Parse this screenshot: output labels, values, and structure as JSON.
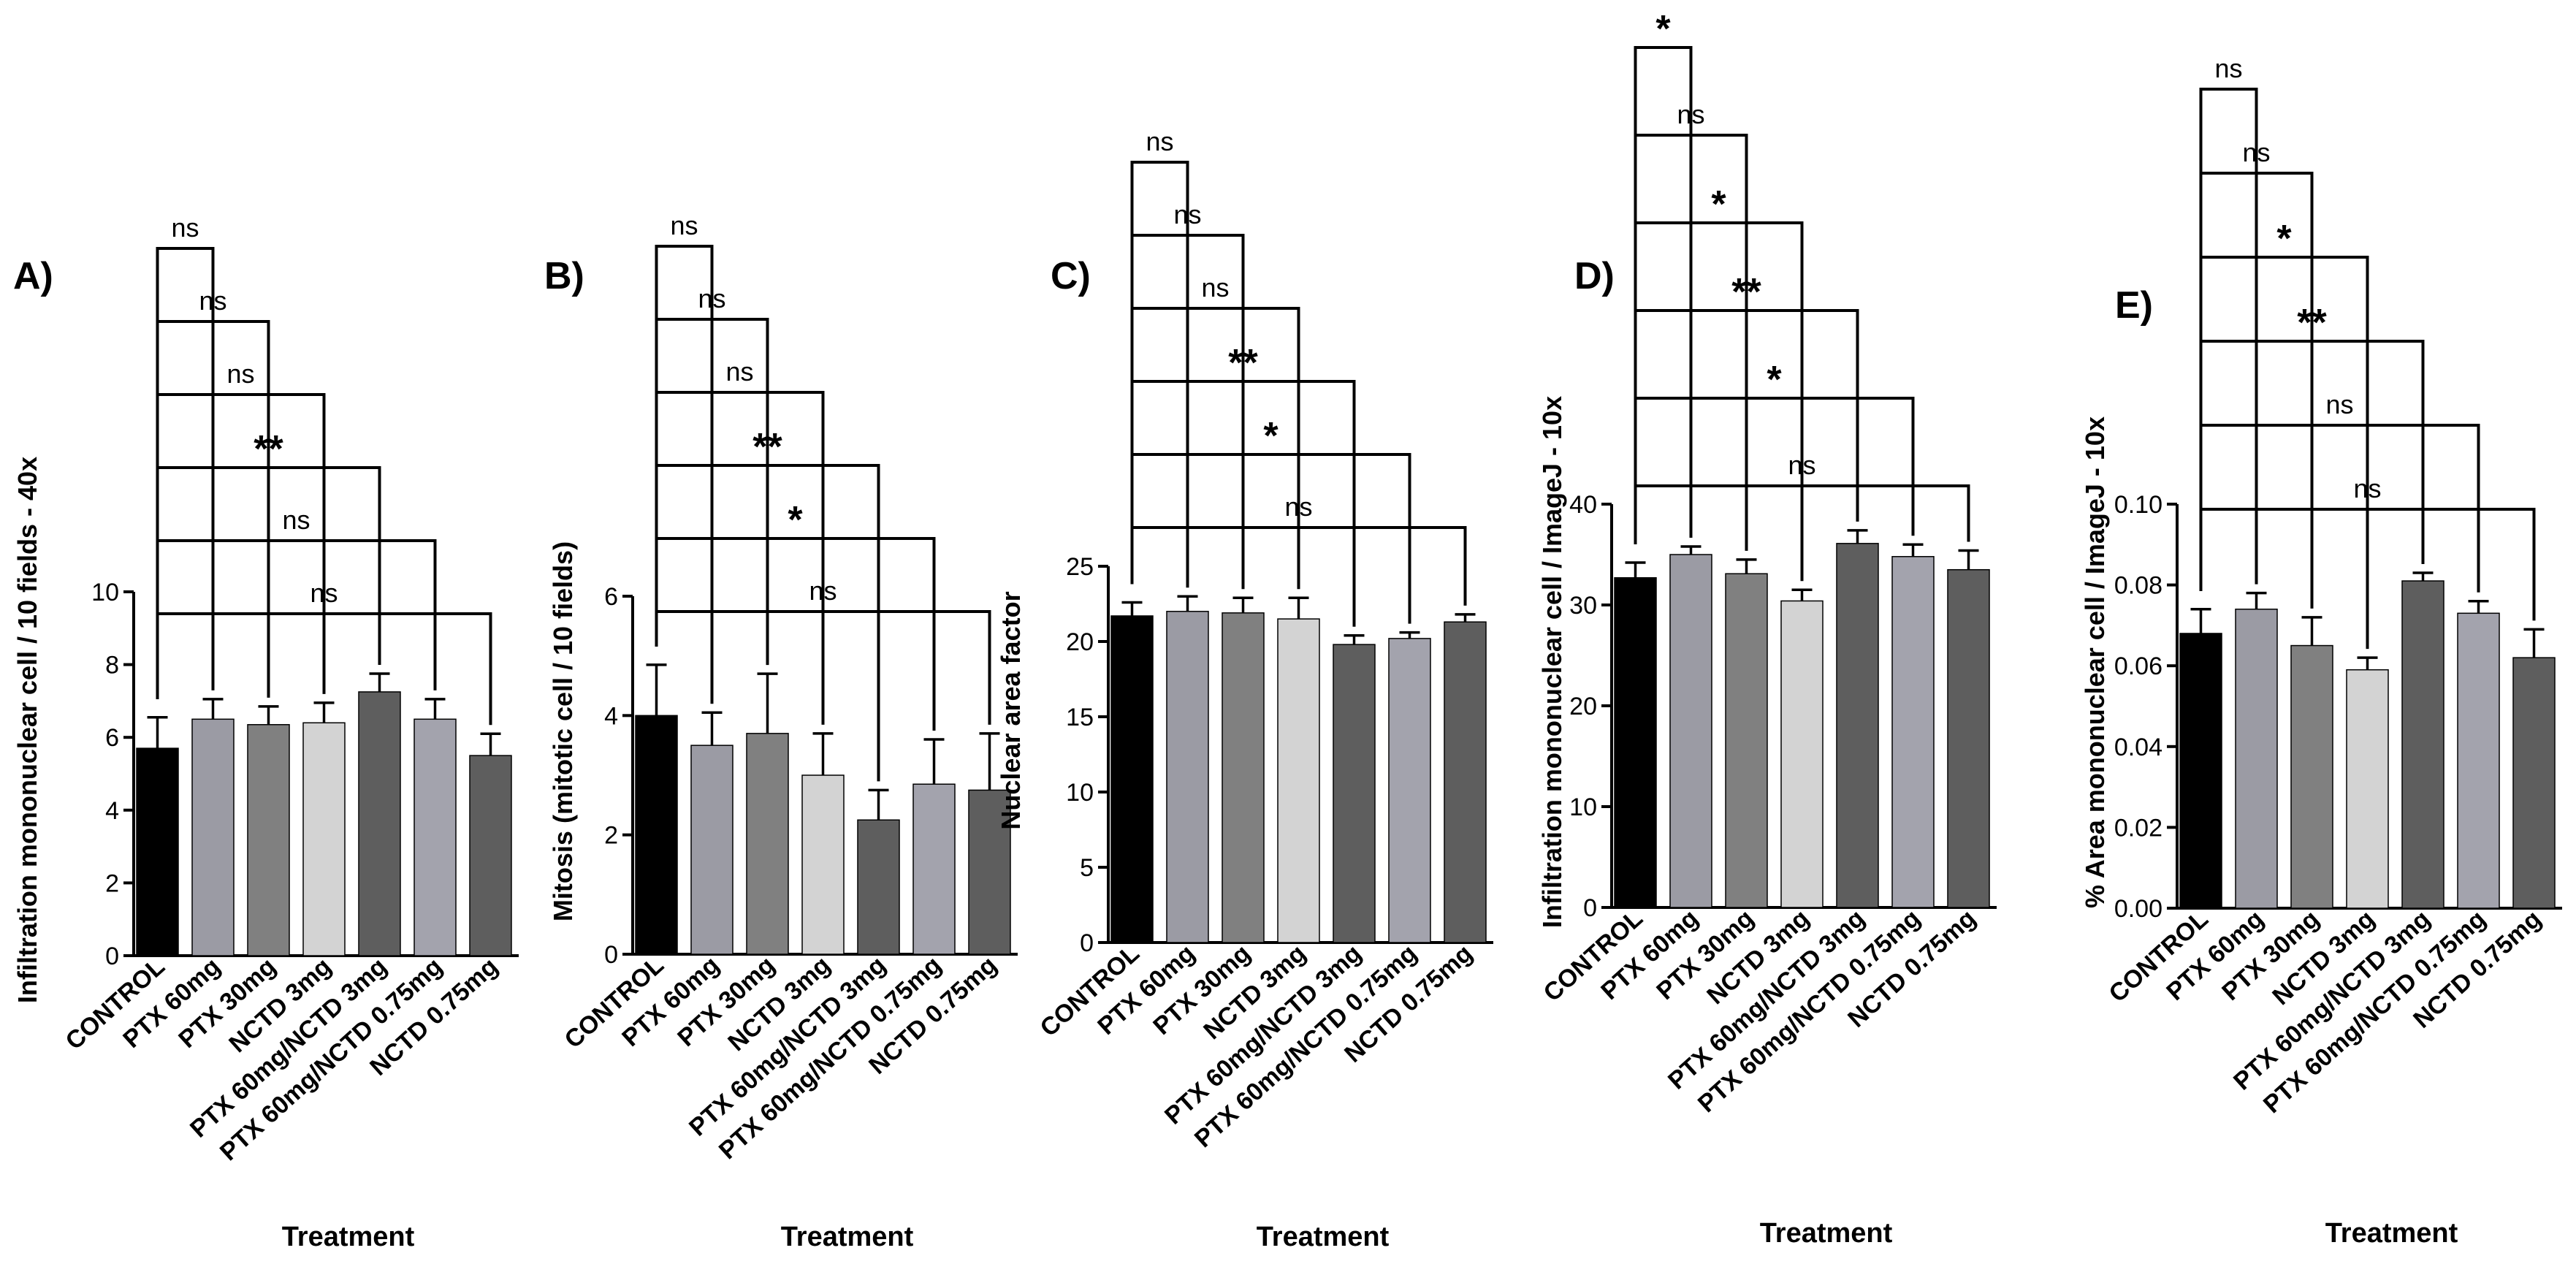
{
  "figure_title": "",
  "colors": [
    "#000000",
    "#9b9ba4",
    "#808080",
    "#d3d3d3",
    "#5e5e5e",
    "#a3a3ad",
    "#5e5e5e"
  ],
  "chart_data": [
    {
      "panel": "A)",
      "type": "bar",
      "ylabel": "Infiltration mononuclear cell / 10 fields - 40x",
      "xlabel": "Treatment",
      "ylim": [
        0,
        10
      ],
      "yticks": [
        0,
        2,
        4,
        6,
        8,
        10
      ],
      "categories": [
        "CONTROL",
        "PTX 60mg",
        "PTX 30mg",
        "NCTD 3mg",
        "PTX 60mg/NCTD 3mg",
        "PTX 60mg/NCTD 0.75mg",
        "NCTD 0.75mg"
      ],
      "values": [
        5.7,
        6.5,
        6.35,
        6.4,
        7.25,
        6.5,
        5.5
      ],
      "errors": [
        0.85,
        0.55,
        0.5,
        0.55,
        0.5,
        0.55,
        0.6
      ],
      "significance": [
        "ns",
        "ns",
        "ns",
        "**",
        "ns",
        "ns"
      ]
    },
    {
      "panel": "B)",
      "type": "bar",
      "ylabel": "Mitosis (mitotic cell / 10 fields)",
      "xlabel": "Treatment",
      "ylim": [
        0,
        6
      ],
      "yticks": [
        0,
        2,
        4,
        6
      ],
      "categories": [
        "CONTROL",
        "PTX 60mg",
        "PTX 30mg",
        "NCTD 3mg",
        "PTX 60mg/NCTD 3mg",
        "PTX 60mg/NCTD 0.75mg",
        "NCTD 0.75mg"
      ],
      "values": [
        4.0,
        3.5,
        3.7,
        3.0,
        2.25,
        2.85,
        2.75
      ],
      "errors": [
        0.85,
        0.55,
        1.0,
        0.7,
        0.5,
        0.75,
        0.95
      ],
      "significance": [
        "ns",
        "ns",
        "ns",
        "**",
        "*",
        "ns"
      ]
    },
    {
      "panel": "C)",
      "type": "bar",
      "ylabel": "Nuclear area factor",
      "xlabel": "Treatment",
      "ylim": [
        0,
        25
      ],
      "yticks": [
        0,
        5,
        10,
        15,
        20,
        25
      ],
      "categories": [
        "CONTROL",
        "PTX 60mg",
        "PTX 30mg",
        "NCTD 3mg",
        "PTX 60mg/NCTD 3mg",
        "PTX 60mg/NCTD 0.75mg",
        "NCTD 0.75mg"
      ],
      "values": [
        21.7,
        22.0,
        21.9,
        21.5,
        19.8,
        20.2,
        21.3
      ],
      "errors": [
        0.9,
        1.0,
        1.0,
        1.4,
        0.6,
        0.4,
        0.5
      ],
      "significance": [
        "ns",
        "ns",
        "ns",
        "**",
        "*",
        "ns"
      ]
    },
    {
      "panel": "D)",
      "type": "bar",
      "ylabel": "Infiltration mononuclear cell / ImageJ - 10x",
      "xlabel": "Treatment",
      "ylim": [
        0,
        40
      ],
      "yticks": [
        0,
        10,
        20,
        30,
        40
      ],
      "categories": [
        "CONTROL",
        "PTX 60mg",
        "PTX 30mg",
        "NCTD 3mg",
        "PTX 60mg/NCTD 3mg",
        "PTX 60mg/NCTD 0.75mg",
        "NCTD 0.75mg"
      ],
      "values": [
        32.7,
        35.0,
        33.1,
        30.4,
        36.1,
        34.8,
        33.5
      ],
      "errors": [
        1.5,
        0.8,
        1.4,
        1.1,
        1.3,
        1.2,
        1.9
      ],
      "significance": [
        "*",
        "ns",
        "*",
        "**",
        "*",
        "ns"
      ]
    },
    {
      "panel": "E)",
      "type": "bar",
      "ylabel": "% Area mononuclear cell / ImageJ - 10x",
      "xlabel": "Treatment",
      "ylim": [
        0,
        0.1
      ],
      "yticks": [
        "0.00",
        "0.02",
        "0.04",
        "0.06",
        "0.08",
        "0.10"
      ],
      "categories": [
        "CONTROL",
        "PTX 60mg",
        "PTX 30mg",
        "NCTD 3mg",
        "PTX 60mg/NCTD 3mg",
        "PTX 60mg/NCTD 0.75mg",
        "NCTD 0.75mg"
      ],
      "values": [
        0.068,
        0.074,
        0.065,
        0.059,
        0.081,
        0.073,
        0.062
      ],
      "errors": [
        0.006,
        0.004,
        0.007,
        0.003,
        0.002,
        0.003,
        0.007
      ],
      "significance": [
        "ns",
        "ns",
        "*",
        "**",
        "ns",
        "ns"
      ]
    }
  ]
}
